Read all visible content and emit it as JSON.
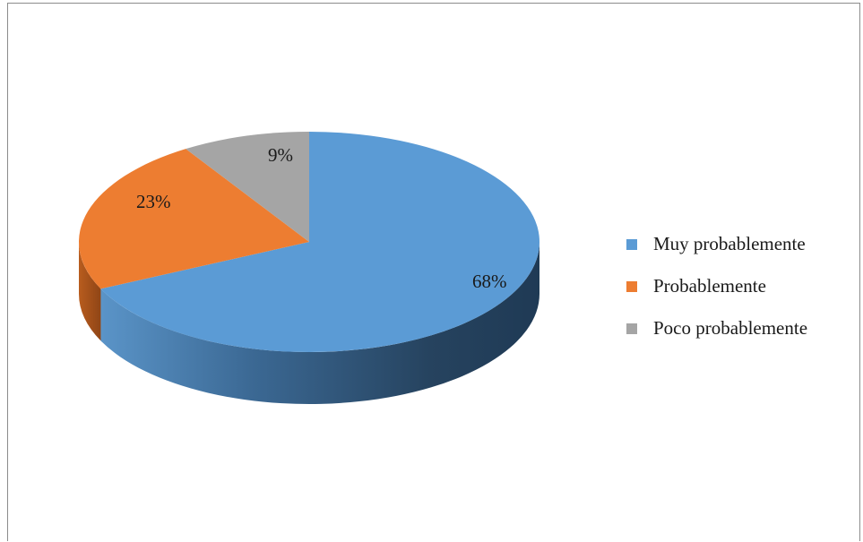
{
  "chart_data": {
    "type": "pie",
    "style": "3d",
    "categories": [
      "Muy probablemente",
      "Probablemente",
      "Poco probablemente"
    ],
    "values": [
      68,
      23,
      9
    ],
    "labels": [
      "68%",
      "23%",
      "9%"
    ],
    "colors": [
      "#5b9bd5",
      "#ed7d31",
      "#a5a5a5"
    ],
    "legend_position": "right"
  },
  "legend": [
    {
      "label": "Muy probablemente",
      "color": "#5b9bd5"
    },
    {
      "label": "Probablemente",
      "color": "#ed7d31"
    },
    {
      "label": "Poco probablemente",
      "color": "#a5a5a5"
    }
  ]
}
